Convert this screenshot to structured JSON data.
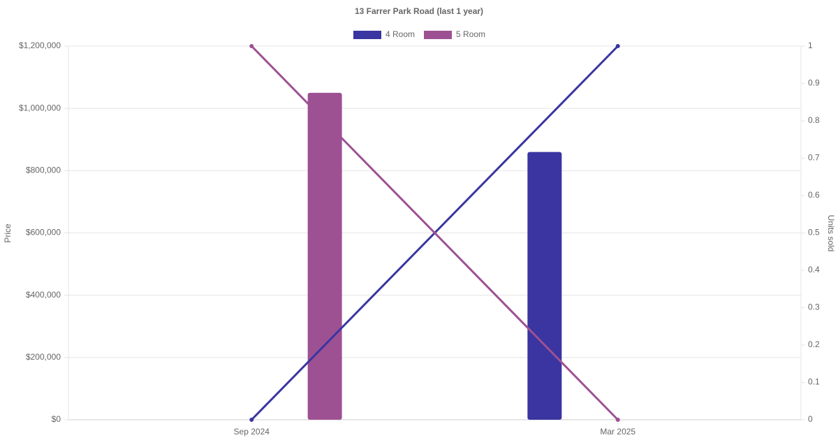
{
  "chart_data": {
    "type": "bar-line",
    "title": "13 Farrer Park Road (last 1 year)",
    "categories": [
      "Sep 2024",
      "Mar 2025"
    ],
    "series": [
      {
        "name": "4 Room",
        "color": "#3a35a0",
        "values": [
          null,
          860000
        ],
        "units": [
          0,
          1
        ]
      },
      {
        "name": "5 Room",
        "color": "#9d5193",
        "values": [
          1050000,
          null
        ],
        "units": [
          1,
          0
        ]
      }
    ],
    "y_label": "Price",
    "y2_label": "Units sold",
    "ylim": [
      0,
      1200000
    ],
    "yticks": [
      {
        "value": 0,
        "label": "$0"
      },
      {
        "value": 200000,
        "label": "$200,000"
      },
      {
        "value": 400000,
        "label": "$400,000"
      },
      {
        "value": 600000,
        "label": "$600,000"
      },
      {
        "value": 800000,
        "label": "$800,000"
      },
      {
        "value": 1000000,
        "label": "$1,000,000"
      },
      {
        "value": 1200000,
        "label": "$1,200,000"
      }
    ],
    "y2lim": [
      0,
      1
    ],
    "y2ticks": [
      0,
      0.1,
      0.2,
      0.3,
      0.4,
      0.5,
      0.6,
      0.7,
      0.8,
      0.9,
      1
    ],
    "grid": true
  }
}
